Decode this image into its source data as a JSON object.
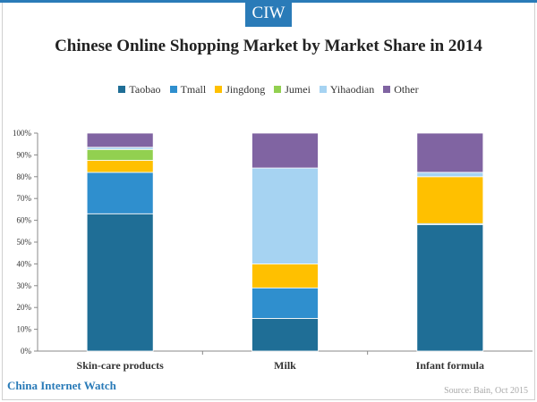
{
  "logo": "CIW",
  "brand": "China Internet Watch",
  "source": "Source: Bain, Oct 2015",
  "colors": {
    "Taobao": "#1f6e96",
    "Tmall": "#2f8fce",
    "Jingdong": "#ffc000",
    "Jumei": "#92d050",
    "Yihaodian": "#a6d3f2",
    "Other": "#8064a2"
  },
  "chart_data": {
    "type": "bar",
    "stacked": true,
    "title": "Chinese Online Shopping Market by Market Share in 2014",
    "categories": [
      "Skin-care products",
      "Milk",
      "Infant formula"
    ],
    "series": [
      {
        "name": "Taobao",
        "values": [
          63,
          15,
          58
        ]
      },
      {
        "name": "Tmall",
        "values": [
          19,
          14,
          0.5
        ]
      },
      {
        "name": "Jingdong",
        "values": [
          5.5,
          11,
          21.5
        ]
      },
      {
        "name": "Jumei",
        "values": [
          5,
          0,
          0
        ]
      },
      {
        "name": "Yihaodian",
        "values": [
          1,
          44,
          2
        ]
      },
      {
        "name": "Other",
        "values": [
          6.5,
          16,
          18
        ]
      }
    ],
    "ylim": [
      0,
      100
    ],
    "yticks": [
      "0%",
      "10%",
      "20%",
      "30%",
      "40%",
      "50%",
      "60%",
      "70%",
      "80%",
      "90%",
      "100%"
    ],
    "legend_position": "top",
    "grid": false
  }
}
